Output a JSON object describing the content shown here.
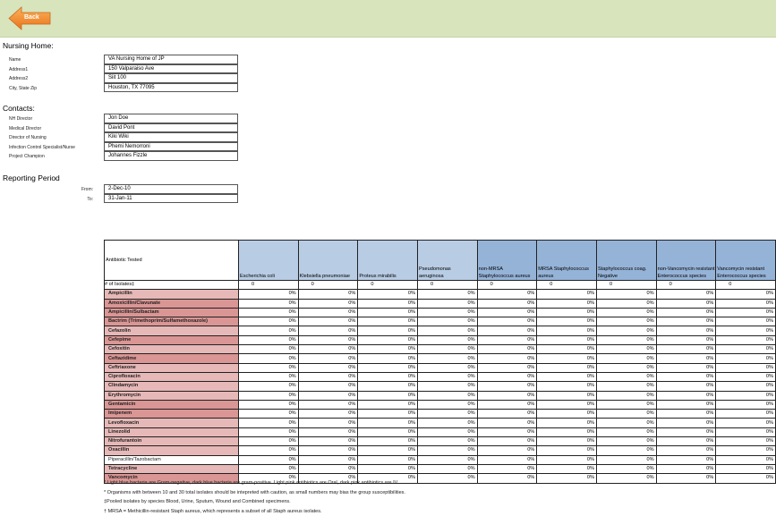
{
  "back_label": "Back",
  "nursing_home": {
    "title": "Nursing Home:",
    "fields": [
      {
        "label": "Name",
        "value": "VA Nursing Home of JP"
      },
      {
        "label": "Address1",
        "value": "150 Valparaiso Ave"
      },
      {
        "label": "Address2",
        "value": "Siit 100"
      },
      {
        "label": "City, State Zip",
        "value": "Houston, TX    77095"
      }
    ]
  },
  "contacts": {
    "title": "Contacts:",
    "fields": [
      {
        "label": "NH Director",
        "value": "Jon Doe"
      },
      {
        "label": "Medical Director",
        "value": "David Pont"
      },
      {
        "label": "Director of Nursing",
        "value": "Kiki Wiki"
      },
      {
        "label": "Infection Control Specialist/Nurse",
        "value": "Phemi Nemorroni"
      },
      {
        "label": "Project Champion",
        "value": "Johannes Fizzle"
      }
    ]
  },
  "reporting": {
    "title": "Reporting Period",
    "from_label": "From:",
    "from": "2-Dec-10",
    "to_label": "To:",
    "to": "31-Jan-11"
  },
  "table": {
    "corner": "Antibiotic Tested",
    "isolates_label": "# of Isolates‡",
    "organisms": [
      {
        "name": "Escherichia coli",
        "shade": "lb"
      },
      {
        "name": "Klebsiella pneumoniae",
        "shade": "lb"
      },
      {
        "name": "Proteus mirabilis",
        "shade": "lb"
      },
      {
        "name": "Pseudomonas aeruginosa",
        "shade": "lb"
      },
      {
        "name": "non-MRSA Staphylococcus aureus",
        "shade": "db"
      },
      {
        "name": "MRSA Staphylococcus aureus",
        "shade": "db"
      },
      {
        "name": "Staphylococcus coag. Negative",
        "shade": "db"
      },
      {
        "name": "non-Vancomycin resistant Enterococcus species",
        "shade": "db"
      },
      {
        "name": "Vancomycin resistant Enterococcus species",
        "shade": "db"
      }
    ],
    "isolates": [
      "0",
      "0",
      "0",
      "0",
      "0",
      "0",
      "0",
      "0",
      "0"
    ],
    "antibiotics": [
      {
        "name": "Ampicillin",
        "shade": "light"
      },
      {
        "name": "Amoxicillin/Clavunate",
        "shade": "dark"
      },
      {
        "name": "Ampicillin/Sulbactam",
        "shade": "dark"
      },
      {
        "name": "Bactrim (Trimethoprim/Sulfamethoxazole)",
        "shade": "dark"
      },
      {
        "name": "Cefazolin",
        "shade": "light"
      },
      {
        "name": "Cefepime",
        "shade": "dark"
      },
      {
        "name": "Cefoxitin",
        "shade": "light"
      },
      {
        "name": "Ceftazidime",
        "shade": "dark"
      },
      {
        "name": "Ceftriaxone",
        "shade": "light"
      },
      {
        "name": "Ciprofloxacin",
        "shade": "light"
      },
      {
        "name": "Clindamycin",
        "shade": "light"
      },
      {
        "name": "Erythromycin",
        "shade": "light"
      },
      {
        "name": "Gentamicin",
        "shade": "dark"
      },
      {
        "name": "Imipenem",
        "shade": "dark"
      },
      {
        "name": "Levofloxacin",
        "shade": "light"
      },
      {
        "name": "Linezolid",
        "shade": "light"
      },
      {
        "name": "Nitrofurantoin",
        "shade": "light"
      },
      {
        "name": "Oxacillin",
        "shade": "light"
      },
      {
        "name": "Piperacillin/Tazobactam",
        "shade": "none"
      },
      {
        "name": "Tetracycline",
        "shade": "light"
      },
      {
        "name": "Vancomycin",
        "shade": "dark"
      }
    ],
    "cell_value": "0%"
  },
  "notes": [
    "* Light blue bacteria are Gram-negative, dark blue bacteria are gram-positive. Light pink antibiotics are Oral, dark pink antibiotics are IV.",
    "* Organisms with between 10 and 30 total isolates should be intepreted with caution, as small numbers may bias the group susceptibilities.",
    "‡Pooled isolates by species Blood, Urine, Sputum, Wound and Combined specimens.",
    "† MRSA = Methicillin-resistant Staph aureus, which represents a subset of all Staph aureus isolates."
  ]
}
